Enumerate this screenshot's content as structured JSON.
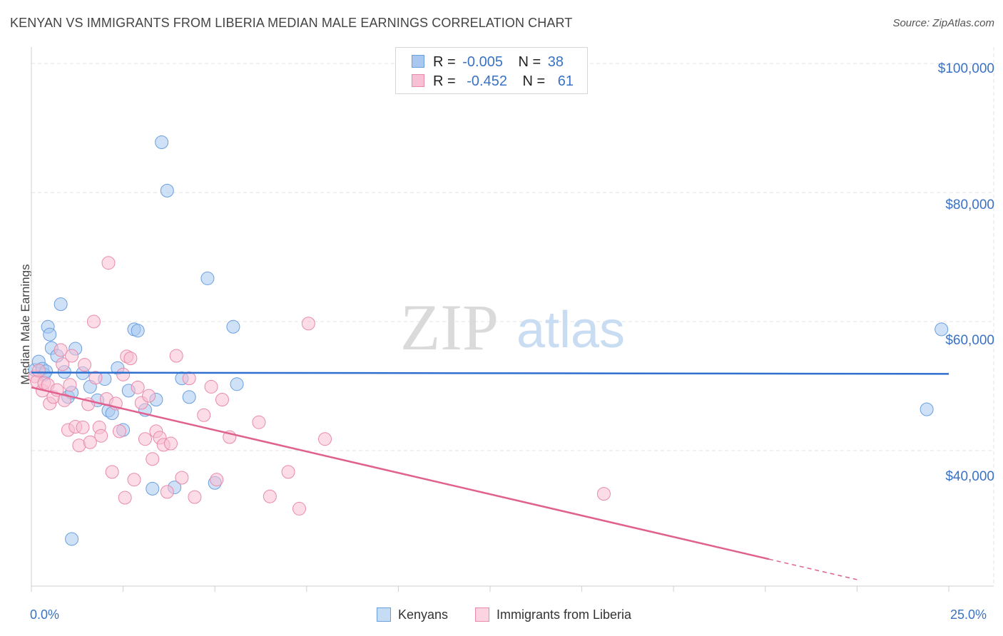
{
  "title": "KENYAN VS IMMIGRANTS FROM LIBERIA MEDIAN MALE EARNINGS CORRELATION CHART",
  "source": "Source: ZipAtlas.com",
  "watermark": {
    "zip": "ZIP",
    "atlas": "atlas"
  },
  "legend": {
    "rows": [
      {
        "r_label": "R =",
        "r_value": "-0.005",
        "n_label": "N =",
        "n_value": "38",
        "color": "#a8c8f0",
        "border": "#6a9fdf"
      },
      {
        "r_label": "R =",
        "r_value": "-0.452",
        "n_label": "N =",
        "n_value": "61",
        "color": "#f8c0d4",
        "border": "#e98aaa"
      }
    ]
  },
  "bottom_legend": {
    "series1": "Kenyans",
    "series2": "Immigrants from Liberia"
  },
  "chart_data": {
    "type": "scatter",
    "title": "KENYAN VS IMMIGRANTS FROM LIBERIA MEDIAN MALE EARNINGS CORRELATION CHART",
    "xlabel": "",
    "ylabel": "Median Male Earnings",
    "xlim": [
      0,
      25
    ],
    "ylim": [
      19000,
      103000
    ],
    "x_tick_labels": [
      "0.0%",
      "25.0%"
    ],
    "y_ticks": [
      {
        "value": 40000,
        "label": "$40,000"
      },
      {
        "value": 60000,
        "label": "$60,000"
      },
      {
        "value": 80000,
        "label": "$80,000"
      },
      {
        "value": 100000,
        "label": "$100,000"
      }
    ],
    "grid": true,
    "series": [
      {
        "name": "Kenyans",
        "color": "#a8c8f0",
        "stroke": "#6a9fdf",
        "line_color": "#2f6fcf",
        "trend": {
          "x0": 0,
          "y0": 52100,
          "x1": 25,
          "y1": 51900,
          "solid_until": 25
        },
        "points": [
          [
            0.1,
            52500
          ],
          [
            0.2,
            53800
          ],
          [
            0.3,
            52700
          ],
          [
            0.35,
            51800
          ],
          [
            0.4,
            52300
          ],
          [
            0.45,
            59200
          ],
          [
            0.5,
            58000
          ],
          [
            0.55,
            55900
          ],
          [
            0.7,
            54700
          ],
          [
            0.8,
            62700
          ],
          [
            0.9,
            52200
          ],
          [
            1.0,
            48300
          ],
          [
            1.1,
            49000
          ],
          [
            1.2,
            55800
          ],
          [
            1.4,
            52000
          ],
          [
            1.6,
            49900
          ],
          [
            1.8,
            47800
          ],
          [
            2.0,
            51100
          ],
          [
            2.1,
            46200
          ],
          [
            2.2,
            45800
          ],
          [
            2.35,
            52800
          ],
          [
            2.5,
            43200
          ],
          [
            2.65,
            49300
          ],
          [
            2.8,
            58800
          ],
          [
            2.9,
            58600
          ],
          [
            3.1,
            46300
          ],
          [
            3.3,
            34100
          ],
          [
            3.4,
            47900
          ],
          [
            3.55,
            87800
          ],
          [
            3.7,
            80300
          ],
          [
            3.9,
            34300
          ],
          [
            4.1,
            51200
          ],
          [
            4.3,
            48300
          ],
          [
            4.8,
            66700
          ],
          [
            5.0,
            35000
          ],
          [
            5.5,
            59200
          ],
          [
            5.6,
            50300
          ],
          [
            1.1,
            26300
          ],
          [
            24.4,
            46400
          ],
          [
            24.8,
            58800
          ]
        ]
      },
      {
        "name": "Immigrants from Liberia",
        "color": "#f8c0d4",
        "stroke": "#e98aaa",
        "line_color": "#e0608e",
        "trend": {
          "x0": 0,
          "y0": 49800,
          "x1": 22.5,
          "y1": 20000,
          "solid_until": 20.1
        },
        "points": [
          [
            0.1,
            51500
          ],
          [
            0.15,
            50700
          ],
          [
            0.2,
            52400
          ],
          [
            0.3,
            49300
          ],
          [
            0.35,
            50500
          ],
          [
            0.45,
            50200
          ],
          [
            0.5,
            47300
          ],
          [
            0.6,
            48300
          ],
          [
            0.7,
            49400
          ],
          [
            0.8,
            55600
          ],
          [
            0.85,
            53400
          ],
          [
            0.9,
            47800
          ],
          [
            1.0,
            43200
          ],
          [
            1.05,
            50200
          ],
          [
            1.1,
            54700
          ],
          [
            1.2,
            43700
          ],
          [
            1.3,
            40800
          ],
          [
            1.4,
            43600
          ],
          [
            1.45,
            53300
          ],
          [
            1.55,
            47200
          ],
          [
            1.6,
            41300
          ],
          [
            1.7,
            60000
          ],
          [
            1.75,
            51300
          ],
          [
            1.85,
            43600
          ],
          [
            1.9,
            42300
          ],
          [
            2.05,
            48000
          ],
          [
            2.1,
            69100
          ],
          [
            2.2,
            36700
          ],
          [
            2.3,
            47300
          ],
          [
            2.4,
            43000
          ],
          [
            2.5,
            51800
          ],
          [
            2.55,
            32700
          ],
          [
            2.6,
            54600
          ],
          [
            2.7,
            54300
          ],
          [
            2.8,
            35500
          ],
          [
            2.9,
            49800
          ],
          [
            3.0,
            47400
          ],
          [
            3.1,
            41800
          ],
          [
            3.2,
            48500
          ],
          [
            3.3,
            38700
          ],
          [
            3.4,
            43000
          ],
          [
            3.5,
            42000
          ],
          [
            3.6,
            40900
          ],
          [
            3.7,
            33600
          ],
          [
            3.8,
            41100
          ],
          [
            3.95,
            54700
          ],
          [
            4.1,
            35800
          ],
          [
            4.3,
            51200
          ],
          [
            4.45,
            32800
          ],
          [
            4.7,
            45500
          ],
          [
            4.9,
            49900
          ],
          [
            5.05,
            35500
          ],
          [
            5.2,
            47900
          ],
          [
            5.4,
            42100
          ],
          [
            6.2,
            44400
          ],
          [
            6.5,
            32900
          ],
          [
            7.0,
            36700
          ],
          [
            7.3,
            31000
          ],
          [
            7.55,
            59700
          ],
          [
            8.0,
            41800
          ],
          [
            15.6,
            33300
          ]
        ]
      }
    ]
  }
}
